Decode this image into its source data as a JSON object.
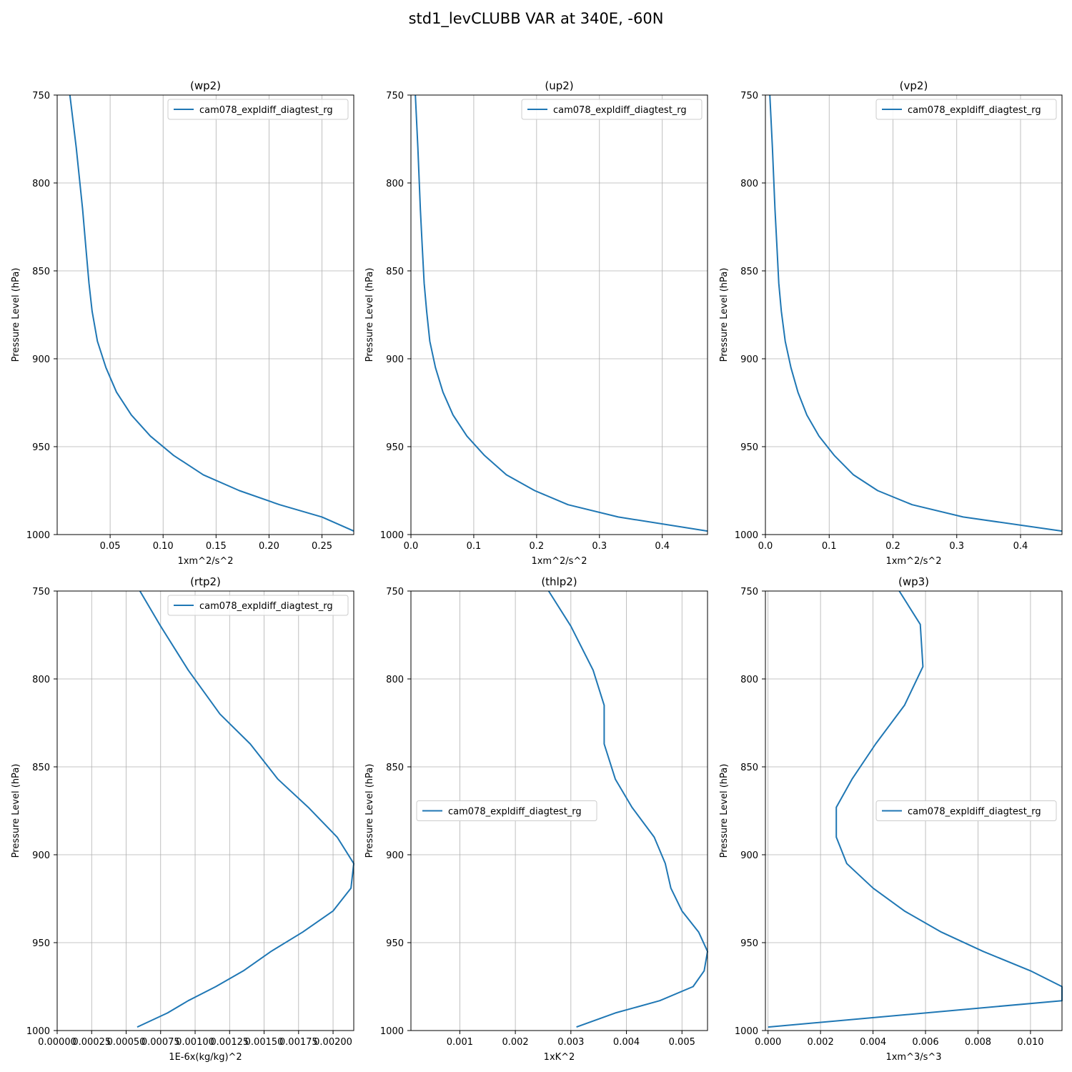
{
  "figure": {
    "title": "std1_levCLUBB VAR at 340E, -60N",
    "line_color": "#1f77b4",
    "grid_color": "#b0b0b0"
  },
  "chart_data": [
    {
      "type": "line",
      "title": "(wp2)",
      "xlabel": "1xm^2/s^2",
      "ylabel": "Pressure Level (hPa)",
      "xlim": [
        0.0,
        0.28
      ],
      "ylim": [
        1000,
        750
      ],
      "y_inverted": true,
      "grid": true,
      "legend_loc": "upper right",
      "xticks": [
        0.05,
        0.1,
        0.15,
        0.2,
        0.25
      ],
      "xtick_labels": [
        "0.05",
        "0.10",
        "0.15",
        "0.20",
        "0.25"
      ],
      "yticks": [
        750,
        800,
        850,
        900,
        950,
        1000
      ],
      "ytick_labels": [
        "750",
        "800",
        "850",
        "900",
        "950",
        "1000"
      ],
      "series": [
        {
          "name": "cam078_expldiff_diagtest_rg",
          "x": [
            0.012,
            0.018,
            0.024,
            0.027,
            0.03,
            0.033,
            0.038,
            0.046,
            0.056,
            0.07,
            0.088,
            0.11,
            0.138,
            0.172,
            0.21,
            0.25,
            0.28
          ],
          "y": [
            750,
            780,
            815,
            836,
            857,
            873,
            890,
            905,
            919,
            932,
            944,
            955,
            966,
            975,
            983,
            990,
            998
          ]
        }
      ]
    },
    {
      "type": "line",
      "title": "(up2)",
      "xlabel": "1xm^2/s^2",
      "ylabel": "Pressure Level (hPa)",
      "xlim": [
        0.0,
        0.472
      ],
      "ylim": [
        1000,
        750
      ],
      "y_inverted": true,
      "grid": true,
      "legend_loc": "upper right",
      "xticks": [
        0.0,
        0.1,
        0.2,
        0.3,
        0.4
      ],
      "xtick_labels": [
        "0.0",
        "0.1",
        "0.2",
        "0.3",
        "0.4"
      ],
      "yticks": [
        750,
        800,
        850,
        900,
        950,
        1000
      ],
      "ytick_labels": [
        "750",
        "800",
        "850",
        "900",
        "950",
        "1000"
      ],
      "series": [
        {
          "name": "cam078_expldiff_diagtest_rg",
          "x": [
            0.007,
            0.011,
            0.015,
            0.018,
            0.021,
            0.025,
            0.03,
            0.039,
            0.051,
            0.067,
            0.089,
            0.117,
            0.152,
            0.197,
            0.25,
            0.33,
            0.472
          ],
          "y": [
            750,
            780,
            815,
            836,
            857,
            873,
            890,
            905,
            919,
            932,
            944,
            955,
            966,
            975,
            983,
            990,
            998
          ]
        }
      ]
    },
    {
      "type": "line",
      "title": "(vp2)",
      "xlabel": "1xm^2/s^2",
      "ylabel": "Pressure Level (hPa)",
      "xlim": [
        0.0,
        0.465
      ],
      "ylim": [
        1000,
        750
      ],
      "y_inverted": true,
      "grid": true,
      "legend_loc": "upper right",
      "xticks": [
        0.0,
        0.1,
        0.2,
        0.3,
        0.4
      ],
      "xtick_labels": [
        "0.0",
        "0.1",
        "0.2",
        "0.3",
        "0.4"
      ],
      "yticks": [
        750,
        800,
        850,
        900,
        950,
        1000
      ],
      "ytick_labels": [
        "750",
        "800",
        "850",
        "900",
        "950",
        "1000"
      ],
      "series": [
        {
          "name": "cam078_expldiff_diagtest_rg",
          "x": [
            0.007,
            0.011,
            0.015,
            0.018,
            0.021,
            0.025,
            0.031,
            0.04,
            0.051,
            0.065,
            0.084,
            0.108,
            0.138,
            0.176,
            0.23,
            0.31,
            0.465
          ],
          "y": [
            750,
            780,
            815,
            836,
            857,
            873,
            890,
            905,
            919,
            932,
            944,
            955,
            966,
            975,
            983,
            990,
            998
          ]
        }
      ]
    },
    {
      "type": "line",
      "title": "(rtp2)",
      "xlabel": "1E-6x(kg/kg)^2",
      "ylabel": "Pressure Level (hPa)",
      "xlim": [
        0.0,
        0.00215
      ],
      "ylim": [
        1000,
        750
      ],
      "y_inverted": true,
      "grid": true,
      "legend_loc": "upper right",
      "xticks": [
        0.0,
        0.00025,
        0.0005,
        0.00075,
        0.001,
        0.00125,
        0.0015,
        0.00175,
        0.002
      ],
      "xtick_labels": [
        "0.00000",
        "0.00025",
        "0.00050",
        "0.00075",
        "0.00100",
        "0.00125",
        "0.00150",
        "0.00175",
        "0.00200"
      ],
      "yticks": [
        750,
        800,
        850,
        900,
        950,
        1000
      ],
      "ytick_labels": [
        "750",
        "800",
        "850",
        "900",
        "950",
        "1000"
      ],
      "series": [
        {
          "name": "cam078_expldiff_diagtest_rg",
          "x": [
            0.0006,
            0.00075,
            0.00095,
            0.00118,
            0.0014,
            0.0016,
            0.00182,
            0.00203,
            0.00215,
            0.00213,
            0.002,
            0.00178,
            0.00155,
            0.00135,
            0.00115,
            0.00095,
            0.0008,
            0.00058
          ],
          "y": [
            750,
            770,
            795,
            820,
            837,
            857,
            873,
            890,
            905,
            919,
            932,
            944,
            955,
            966,
            975,
            983,
            990,
            998
          ]
        }
      ]
    },
    {
      "type": "line",
      "title": "(thlp2)",
      "xlabel": "1xK^2",
      "ylabel": "Pressure Level (hPa)",
      "xlim": [
        0.00012,
        0.00546
      ],
      "ylim": [
        1000,
        750
      ],
      "y_inverted": true,
      "grid": true,
      "legend_loc": "center left",
      "xticks": [
        0.001,
        0.002,
        0.003,
        0.004,
        0.005
      ],
      "xtick_labels": [
        "0.001",
        "0.002",
        "0.003",
        "0.004",
        "0.005"
      ],
      "yticks": [
        750,
        800,
        850,
        900,
        950,
        1000
      ],
      "ytick_labels": [
        "750",
        "800",
        "850",
        "900",
        "950",
        "1000"
      ],
      "series": [
        {
          "name": "cam078_expldiff_diagtest_rg",
          "x": [
            0.0026,
            0.003,
            0.0034,
            0.0036,
            0.0036,
            0.0038,
            0.0041,
            0.0045,
            0.0047,
            0.0048,
            0.005,
            0.0053,
            0.00546,
            0.0054,
            0.0052,
            0.0046,
            0.0038,
            0.0031
          ],
          "y": [
            750,
            770,
            795,
            815,
            837,
            857,
            873,
            890,
            905,
            919,
            932,
            944,
            955,
            966,
            975,
            983,
            990,
            998
          ]
        }
      ]
    },
    {
      "type": "line",
      "title": "(wp3)",
      "xlabel": "1xm^3/s^3",
      "ylabel": "Pressure Level (hPa)",
      "xlim": [
        -0.0001,
        0.0112
      ],
      "ylim": [
        1000,
        750
      ],
      "y_inverted": true,
      "grid": true,
      "legend_loc": "center right",
      "xticks": [
        0.0,
        0.002,
        0.004,
        0.006,
        0.008,
        0.01
      ],
      "xtick_labels": [
        "0.000",
        "0.002",
        "0.004",
        "0.006",
        "0.008",
        "0.010"
      ],
      "yticks": [
        750,
        800,
        850,
        900,
        950,
        1000
      ],
      "ytick_labels": [
        "750",
        "800",
        "850",
        "900",
        "950",
        "1000"
      ],
      "series": [
        {
          "name": "cam078_expldiff_diagtest_rg",
          "x": [
            0.005,
            0.0058,
            0.0059,
            0.0052,
            0.0041,
            0.0032,
            0.0026,
            0.0026,
            0.003,
            0.004,
            0.0052,
            0.0066,
            0.0082,
            0.01,
            0.0112,
            0.0112,
            0.0
          ],
          "y": [
            750,
            769,
            793,
            815,
            837,
            857,
            873,
            890,
            905,
            919,
            932,
            944,
            955,
            966,
            975,
            983,
            998
          ]
        }
      ]
    }
  ]
}
